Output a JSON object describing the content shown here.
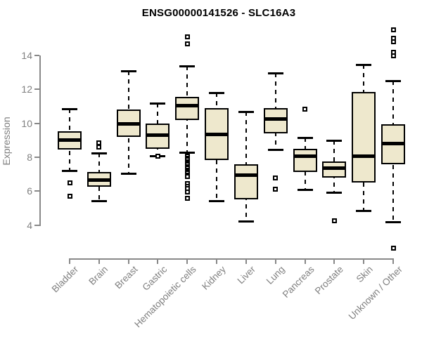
{
  "chart_data": {
    "type": "boxplot",
    "title": "ENSG00000141526 - SLC16A3",
    "xlabel": "",
    "ylabel": "Expression",
    "ylim": [
      4,
      15.6
    ],
    "yticks": [
      4,
      6,
      8,
      10,
      12,
      14
    ],
    "grid": false,
    "legend": "none",
    "categories": [
      "Bladder",
      "Brain",
      "Breast",
      "Gastric",
      "Hematopoietic cells",
      "Kidney",
      "Liver",
      "Lung",
      "Pancreas",
      "Prostate",
      "Skin",
      "Unknown / Other"
    ],
    "boxes": [
      {
        "category": "Bladder",
        "whisker_low": 7.2,
        "q1": 8.45,
        "median": 9.0,
        "q3": 9.55,
        "whisker_high": 10.85,
        "outliers": [
          6.5,
          5.7
        ]
      },
      {
        "category": "Brain",
        "whisker_low": 5.45,
        "q1": 6.25,
        "median": 6.65,
        "q3": 7.15,
        "whisker_high": 8.25,
        "outliers": [
          8.85,
          8.6
        ]
      },
      {
        "category": "Breast",
        "whisker_low": 7.05,
        "q1": 9.2,
        "median": 9.95,
        "q3": 10.8,
        "whisker_high": 13.1,
        "outliers": []
      },
      {
        "category": "Gastric",
        "whisker_low": 8.1,
        "q1": 8.5,
        "median": 9.3,
        "q3": 10.0,
        "whisker_high": 11.2,
        "outliers": [
          8.05
        ]
      },
      {
        "category": "Hematopoietic cells",
        "whisker_low": 8.3,
        "q1": 10.2,
        "median": 11.05,
        "q3": 11.55,
        "whisker_high": 13.4,
        "outliers": [
          15.1,
          14.7,
          8.15,
          8.05,
          7.95,
          7.85,
          7.75,
          7.65,
          7.55,
          7.45,
          7.35,
          7.25,
          7.15,
          7.05,
          6.95,
          6.85,
          6.45,
          6.3,
          6.15,
          5.95,
          5.6
        ]
      },
      {
        "category": "Kidney",
        "whisker_low": 5.45,
        "q1": 7.85,
        "median": 9.35,
        "q3": 10.9,
        "whisker_high": 11.8,
        "outliers": []
      },
      {
        "category": "Liver",
        "whisker_low": 4.25,
        "q1": 5.5,
        "median": 6.95,
        "q3": 7.6,
        "whisker_high": 10.7,
        "outliers": []
      },
      {
        "category": "Lung",
        "whisker_low": 8.45,
        "q1": 9.4,
        "median": 10.25,
        "q3": 10.9,
        "whisker_high": 12.95,
        "outliers": [
          6.8,
          6.1
        ]
      },
      {
        "category": "Pancreas",
        "whisker_low": 6.1,
        "q1": 7.15,
        "median": 8.05,
        "q3": 8.5,
        "whisker_high": 9.15,
        "outliers": [
          10.85
        ]
      },
      {
        "category": "Prostate",
        "whisker_low": 5.95,
        "q1": 6.8,
        "median": 7.35,
        "q3": 7.75,
        "whisker_high": 9.0,
        "outliers": [
          4.25
        ]
      },
      {
        "category": "Skin",
        "whisker_low": 4.85,
        "q1": 6.5,
        "median": 8.05,
        "q3": 11.85,
        "whisker_high": 13.45,
        "outliers": []
      },
      {
        "category": "Unknown / Other",
        "whisker_low": 4.2,
        "q1": 7.6,
        "median": 8.8,
        "q3": 9.95,
        "whisker_high": 12.5,
        "outliers": [
          15.5,
          15.0,
          14.8,
          14.2,
          14.0,
          2.65
        ]
      }
    ],
    "colors": {
      "box_fill": "#EEE8CD",
      "box_outline": "#000000",
      "median": "#000000",
      "axis": "#888888",
      "tick_text": "#7f7f7f",
      "title_text": "#000000",
      "background": "#ffffff"
    }
  }
}
